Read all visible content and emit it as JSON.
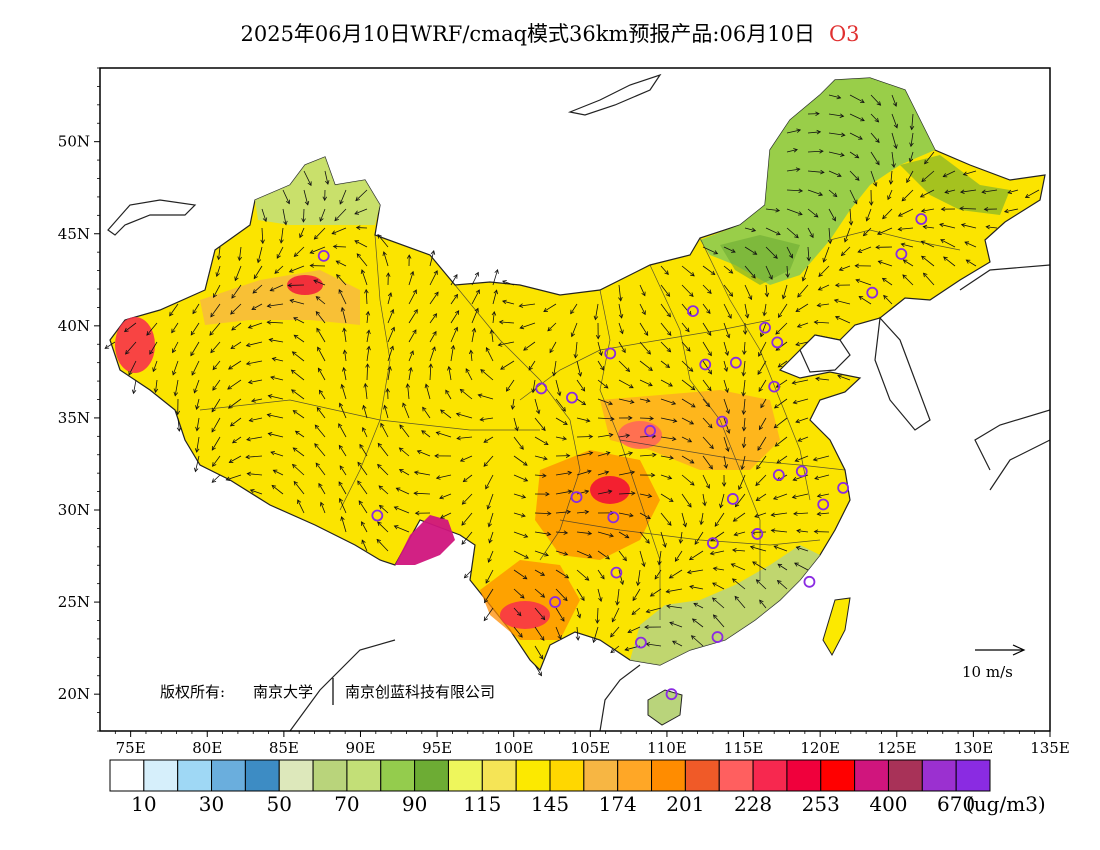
{
  "title": {
    "main": "2025年06月10日WRF/cmaq模式36km预报产品:06月10日",
    "species": "O3"
  },
  "copyright": {
    "prefix": "版权所有:",
    "org1": "南京大学",
    "org2": "南京创蓝科技有限公司"
  },
  "map": {
    "lon_range": [
      73,
      135
    ],
    "lat_range": [
      18,
      54
    ],
    "lon_ticks": [
      "75E",
      "80E",
      "85E",
      "90E",
      "95E",
      "100E",
      "105E",
      "110E",
      "115E",
      "120E",
      "125E",
      "130E",
      "135E"
    ],
    "lat_ticks": [
      "20N",
      "25N",
      "30N",
      "35N",
      "40N",
      "45N",
      "50N"
    ],
    "wind_reference": "10 m/s",
    "stations": [
      {
        "lon": 87.6,
        "lat": 43.8
      },
      {
        "lon": 91.1,
        "lat": 29.7
      },
      {
        "lon": 101.8,
        "lat": 36.6
      },
      {
        "lon": 103.8,
        "lat": 36.1
      },
      {
        "lon": 106.3,
        "lat": 38.5
      },
      {
        "lon": 104.1,
        "lat": 30.7
      },
      {
        "lon": 106.5,
        "lat": 29.6
      },
      {
        "lon": 106.7,
        "lat": 26.6
      },
      {
        "lon": 102.7,
        "lat": 25.0
      },
      {
        "lon": 108.3,
        "lat": 22.8
      },
      {
        "lon": 110.3,
        "lat": 20.0
      },
      {
        "lon": 113.3,
        "lat": 23.1
      },
      {
        "lon": 113.0,
        "lat": 28.2
      },
      {
        "lon": 115.9,
        "lat": 28.7
      },
      {
        "lon": 114.3,
        "lat": 30.6
      },
      {
        "lon": 108.9,
        "lat": 34.3
      },
      {
        "lon": 113.6,
        "lat": 34.8
      },
      {
        "lon": 117.0,
        "lat": 36.7
      },
      {
        "lon": 114.5,
        "lat": 38.0
      },
      {
        "lon": 112.5,
        "lat": 37.9
      },
      {
        "lon": 111.7,
        "lat": 40.8
      },
      {
        "lon": 116.4,
        "lat": 39.9
      },
      {
        "lon": 117.2,
        "lat": 39.1
      },
      {
        "lon": 123.4,
        "lat": 41.8
      },
      {
        "lon": 125.3,
        "lat": 43.9
      },
      {
        "lon": 126.6,
        "lat": 45.8
      },
      {
        "lon": 117.3,
        "lat": 31.9
      },
      {
        "lon": 118.8,
        "lat": 32.1
      },
      {
        "lon": 120.2,
        "lat": 30.3
      },
      {
        "lon": 121.5,
        "lat": 31.2
      },
      {
        "lon": 119.3,
        "lat": 26.1
      }
    ]
  },
  "legend": {
    "colors": [
      "#ffffff",
      "#d6effb",
      "#9fd8f5",
      "#6aaedd",
      "#3d8cc4",
      "#dde8bb",
      "#b9d47b",
      "#c3df77",
      "#94cc4d",
      "#6dac34",
      "#eef65c",
      "#f5e456",
      "#fce900",
      "#ffd700",
      "#f7b643",
      "#ffa726",
      "#ff8c00",
      "#f05a28",
      "#ff5f5f",
      "#f7284f",
      "#f0003c",
      "#ff0000",
      "#d0157d",
      "#a83258",
      "#9b30d0",
      "#8a2be2"
    ],
    "labels": [
      "10",
      "30",
      "50",
      "70",
      "90",
      "115",
      "145",
      "174",
      "201",
      "228",
      "253",
      "400",
      "670"
    ],
    "unit": "(ug/m3)"
  }
}
